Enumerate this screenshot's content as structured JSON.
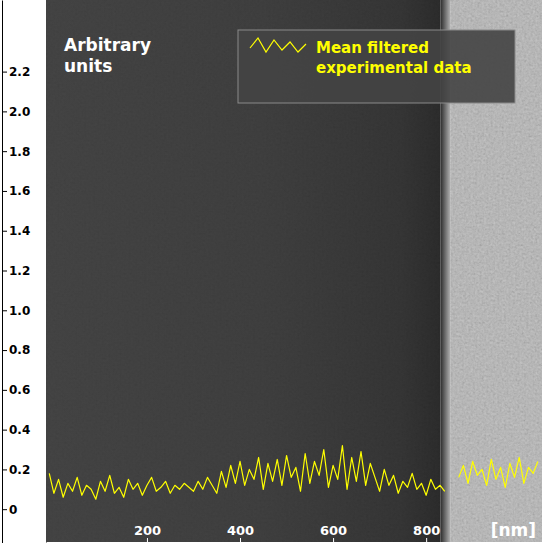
{
  "chart_data": {
    "type": "line",
    "y_label": "Arbitrary units",
    "x_label": "[nm]",
    "x": [
      -10,
      0,
      10,
      20,
      30,
      40,
      50,
      60,
      70,
      80,
      90,
      100,
      110,
      120,
      130,
      140,
      150,
      160,
      170,
      180,
      190,
      200,
      210,
      220,
      230,
      240,
      250,
      260,
      270,
      280,
      290,
      300,
      310,
      320,
      330,
      340,
      350,
      360,
      370,
      380,
      390,
      400,
      410,
      420,
      430,
      440,
      450,
      460,
      470,
      480,
      490,
      500,
      510,
      520,
      530,
      540,
      550,
      560,
      570,
      580,
      590,
      600,
      610,
      620,
      630,
      640,
      650,
      660,
      670,
      680,
      690,
      700,
      710,
      720,
      730,
      740,
      750,
      760,
      770,
      780,
      790,
      800,
      810,
      820,
      830,
      840,
      850,
      860,
      870,
      880,
      890,
      900,
      910,
      920,
      930,
      940,
      950,
      960,
      970,
      980,
      990,
      1000,
      1010,
      1020,
      1030,
      1040
    ],
    "series": [
      {
        "name": "Mean filtered experimental data",
        "color": "#ffff00",
        "values": [
          0.18,
          0.08,
          0.15,
          0.06,
          0.13,
          0.09,
          0.16,
          0.07,
          0.12,
          0.1,
          0.05,
          0.14,
          0.09,
          0.17,
          0.08,
          0.11,
          0.06,
          0.15,
          0.1,
          0.13,
          0.07,
          0.12,
          0.16,
          0.09,
          0.11,
          0.14,
          0.08,
          0.12,
          0.1,
          0.13,
          0.11,
          0.09,
          0.14,
          0.1,
          0.16,
          0.12,
          0.08,
          0.19,
          0.11,
          0.22,
          0.13,
          0.24,
          0.12,
          0.2,
          0.15,
          0.26,
          0.1,
          0.23,
          0.14,
          0.25,
          0.12,
          0.27,
          0.16,
          0.21,
          0.09,
          0.28,
          0.13,
          0.24,
          0.17,
          0.3,
          0.11,
          0.22,
          0.15,
          0.32,
          0.1,
          0.26,
          0.14,
          0.29,
          0.12,
          0.23,
          0.16,
          0.09,
          0.2,
          0.12,
          0.17,
          0.08,
          0.14,
          0.11,
          0.18,
          0.1,
          0.13,
          0.07,
          0.15,
          0.1,
          0.12,
          0.09,
          null,
          null,
          0.16,
          0.22,
          0.13,
          0.24,
          0.17,
          0.2,
          0.12,
          0.25,
          0.15,
          0.21,
          0.11,
          0.23,
          0.16,
          0.26,
          0.13,
          0.21,
          0.18,
          0.24
        ]
      }
    ],
    "xlim": [
      -17,
      1049
    ],
    "ylim": [
      -0.17,
      2.56
    ],
    "xticks": [
      200,
      400,
      600,
      800
    ],
    "yticks": [
      0,
      0.2,
      0.4,
      0.6,
      0.8,
      {
        "value": 1,
        "label": "1.0"
      },
      1.2,
      1.4,
      1.6,
      1.8,
      {
        "value": 2,
        "label": "2.0"
      },
      2.2
    ],
    "legend": "upper right",
    "grid": false
  }
}
